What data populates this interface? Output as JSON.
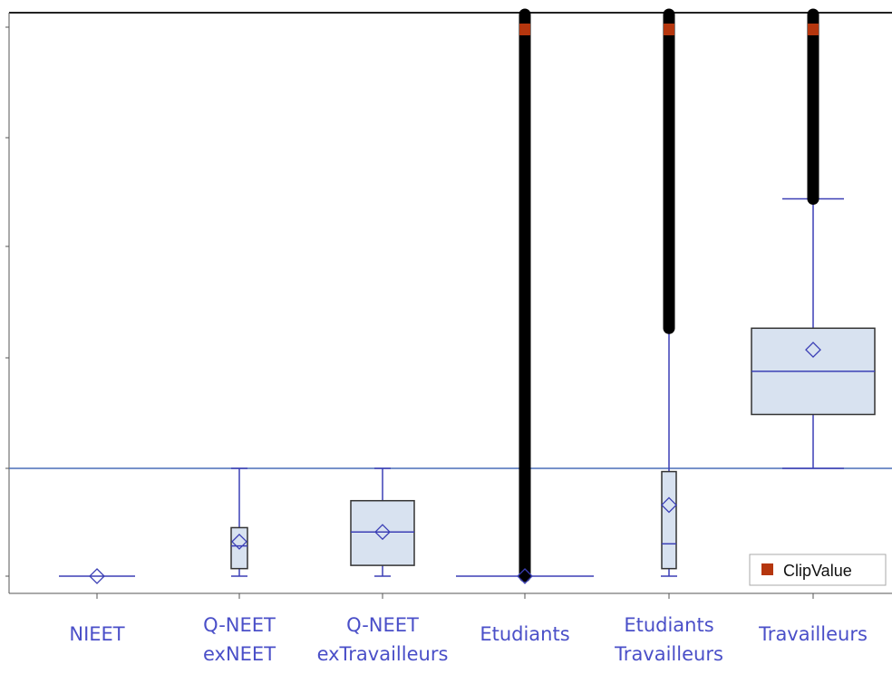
{
  "colors": {
    "box_fill": "#d8e2f0",
    "box_stroke": "#333333",
    "whisker": "#3b3fb5",
    "mean_marker": "#3b3fb5",
    "outlier": "#000000",
    "clip_marker": "#b5360e",
    "reference_line": "#4a6fb8",
    "axis": "#555555",
    "label": "#4a4fc8"
  },
  "legend": {
    "label": "ClipValue",
    "position": "bottom-right"
  },
  "chart_data": {
    "type": "box",
    "title": "",
    "xlabel": "",
    "ylabel": "",
    "y_ticks_labeled": false,
    "ylim": [
      0,
      5.2
    ],
    "reference_line": 1.0,
    "categories": [
      {
        "label_lines": [
          "NIEET"
        ],
        "q1": 0.0,
        "median": 0.0,
        "q3": 0.0,
        "mean": 0.0,
        "whisker_low": 0.0,
        "whisker_high": 0.0,
        "whisker_cap_low": 0.0,
        "whisker_cap_high": 0.0,
        "outliers_from": null,
        "clipped": false
      },
      {
        "label_lines": [
          "Q-NEET",
          "exNEET"
        ],
        "q1": 0.07,
        "median": 0.28,
        "q3": 0.45,
        "mean": 0.32,
        "whisker_low": 0.0,
        "whisker_high": 1.0,
        "whisker_cap_low": 0.0,
        "whisker_cap_high": 1.0,
        "outliers_from": null,
        "clipped": false
      },
      {
        "label_lines": [
          "Q-NEET",
          "exTravailleurs"
        ],
        "q1": 0.1,
        "median": 0.41,
        "q3": 0.7,
        "mean": 0.41,
        "whisker_low": 0.0,
        "whisker_high": 1.0,
        "whisker_cap_low": 0.0,
        "whisker_cap_high": 1.0,
        "outliers_from": null,
        "clipped": false
      },
      {
        "label_lines": [
          "Etudiants"
        ],
        "q1": 0.0,
        "median": 0.0,
        "q3": 0.0,
        "mean": 0.0,
        "whisker_low": 0.0,
        "whisker_high": 0.0,
        "whisker_cap_low": 0.0,
        "whisker_cap_high": 0.0,
        "outliers_from": 0.0,
        "clipped": true
      },
      {
        "label_lines": [
          "Etudiants",
          "Travailleurs"
        ],
        "q1": 0.07,
        "median": 0.3,
        "q3": 0.97,
        "mean": 0.66,
        "whisker_low": 0.0,
        "whisker_high": 2.3,
        "whisker_cap_low": 0.0,
        "whisker_cap_high": null,
        "outliers_from": 2.3,
        "clipped": true
      },
      {
        "label_lines": [
          "Travailleurs"
        ],
        "q1": 1.5,
        "median": 1.9,
        "q3": 2.3,
        "mean": 2.1,
        "whisker_low": 1.0,
        "whisker_high": 3.5,
        "whisker_cap_low": 1.0,
        "whisker_cap_high": 3.5,
        "outliers_from": 3.5,
        "clipped": true
      }
    ]
  }
}
